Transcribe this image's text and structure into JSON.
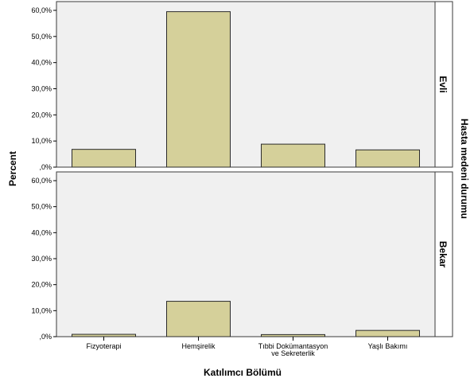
{
  "chart_data": {
    "type": "bar",
    "categories": [
      "Fizyoterapi",
      "Hemşirelik",
      "Tıbbi Dokümantasyon ve Sekreterlik",
      "Yaşlı Bakımı"
    ],
    "category_lines": [
      [
        "Fizyoterapi"
      ],
      [
        "Hemşirelik"
      ],
      [
        "Tıbbi Dokümantasyon",
        "ve Sekreterlik"
      ],
      [
        "Yaşlı Bakımı"
      ]
    ],
    "panels": [
      {
        "label": "Evli",
        "values": [
          6.8,
          59.5,
          8.8,
          6.6
        ]
      },
      {
        "label": "Bekar",
        "values": [
          0.9,
          13.6,
          0.8,
          2.4
        ]
      }
    ],
    "panel_variable": "Hasta medeni durumu",
    "xlabel": "Katılımcı Bölümü",
    "ylabel": "Percent",
    "ylim": [
      0,
      60
    ],
    "yticks": [
      0,
      10,
      20,
      30,
      40,
      50,
      60
    ],
    "ytick_labels": [
      ",0%",
      "10,0%",
      "20,0%",
      "30,0%",
      "40,0%",
      "50,0%",
      "60,0%"
    ],
    "grid": false,
    "colors": {
      "bar_fill": "#d5d09a",
      "bar_stroke": "#2b2b2b",
      "panel_bg": "#f0f0f0",
      "panel_border": "#3a3a3a",
      "page_bg": "#ffffff"
    }
  }
}
